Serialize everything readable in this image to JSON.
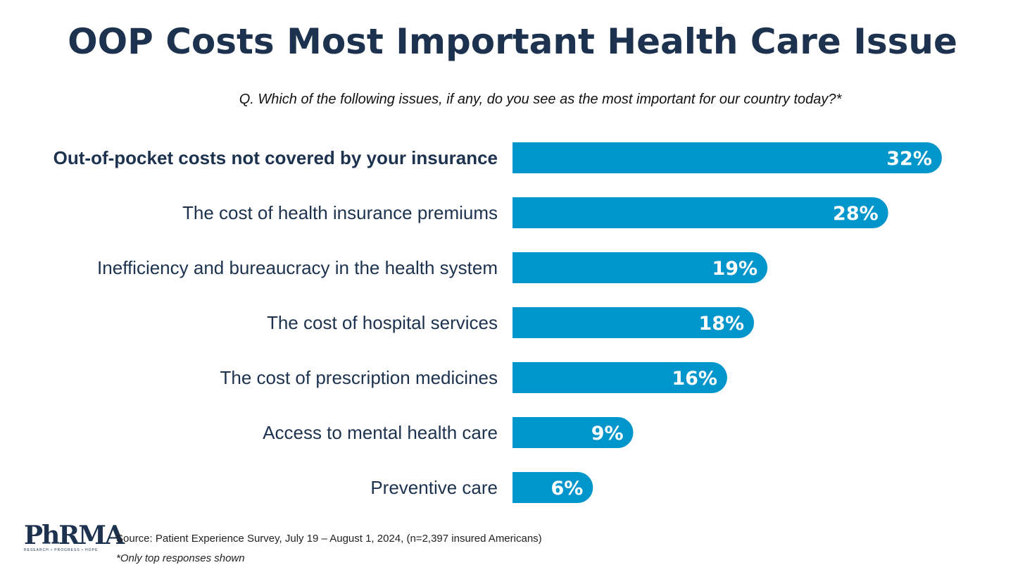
{
  "slide": {
    "source": "Source: Patient Experience Survey, July 19 – August 1, 2024, (n=2,397 insured Americans)",
    "footnote": "*Only top responses shown",
    "logo": {
      "text": "PhRMA",
      "tagline": "RESEARCH • PROGRESS • HOPE"
    }
  },
  "colors": {
    "bar": "#0096cc",
    "title": "#1d324e",
    "label": "#1d324e",
    "value_text": "#ffffff"
  },
  "chart_data": {
    "type": "bar",
    "orientation": "horizontal",
    "title": "OOP Costs Most Important Health Care Issue",
    "subtitle": "Q. Which of the following issues, if any, do you see as the most important for our country today?*",
    "categories": [
      "Out-of-pocket costs not covered by your insurance",
      "The cost of health insurance premiums",
      "Inefficiency and bureaucracy in the health system",
      "The cost of hospital services",
      "The cost of prescription medicines",
      "Access to mental health care",
      "Preventive care"
    ],
    "values": [
      32,
      28,
      19,
      18,
      16,
      9,
      6
    ],
    "value_labels": [
      "32%",
      "28%",
      "19%",
      "18%",
      "16%",
      "9%",
      "6%"
    ],
    "highlighted_category": "Out-of-pocket costs not covered by your insurance",
    "xlabel": "",
    "ylabel": "",
    "unit": "%",
    "grid": false,
    "legend": "none"
  }
}
